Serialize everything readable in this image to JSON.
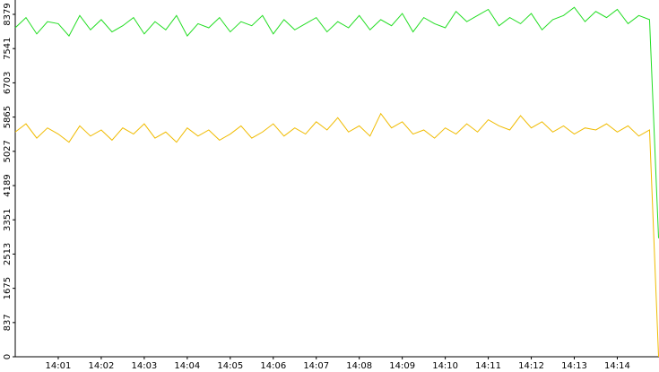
{
  "chart_data": {
    "type": "line",
    "x": [
      0,
      0.25,
      0.5,
      0.75,
      1,
      1.25,
      1.5,
      1.75,
      2,
      2.25,
      2.5,
      2.75,
      3,
      3.25,
      3.5,
      3.75,
      4,
      4.25,
      4.5,
      4.75,
      5,
      5.25,
      5.5,
      5.75,
      6,
      6.25,
      6.5,
      6.75,
      7,
      7.25,
      7.5,
      7.75,
      8,
      8.25,
      8.5,
      8.75,
      9,
      9.25,
      9.5,
      9.75,
      10,
      10.25,
      10.5,
      10.75,
      11,
      11.25,
      11.5,
      11.75,
      12,
      12.25,
      12.5,
      12.75,
      13,
      13.25,
      13.5,
      13.75,
      14,
      14.25,
      14.5,
      14.75,
      14.96
    ],
    "series": [
      {
        "color": "#22dd22",
        "values": [
          8050,
          8300,
          7900,
          8200,
          8150,
          7850,
          8350,
          8000,
          8250,
          7950,
          8100,
          8300,
          7900,
          8200,
          8000,
          8350,
          7850,
          8150,
          8050,
          8300,
          7950,
          8200,
          8100,
          8350,
          7900,
          8250,
          8000,
          8150,
          8300,
          7950,
          8200,
          8050,
          8350,
          8000,
          8250,
          8100,
          8400,
          7950,
          8300,
          8150,
          8050,
          8450,
          8200,
          8350,
          8500,
          8100,
          8300,
          8150,
          8400,
          8000,
          8250,
          8350,
          8550,
          8200,
          8450,
          8300,
          8500,
          8150,
          8350,
          8250,
          2900
        ]
      },
      {
        "color": "#f0bb00",
        "values": [
          5500,
          5700,
          5350,
          5600,
          5450,
          5250,
          5650,
          5400,
          5550,
          5300,
          5600,
          5450,
          5700,
          5350,
          5500,
          5250,
          5600,
          5400,
          5550,
          5300,
          5450,
          5650,
          5350,
          5500,
          5700,
          5400,
          5600,
          5450,
          5750,
          5550,
          5850,
          5500,
          5650,
          5400,
          5950,
          5600,
          5750,
          5450,
          5550,
          5350,
          5600,
          5450,
          5700,
          5500,
          5800,
          5650,
          5550,
          5900,
          5600,
          5750,
          5500,
          5650,
          5450,
          5600,
          5550,
          5700,
          5500,
          5650,
          5400,
          5550,
          0
        ]
      }
    ],
    "xlim": [
      0,
      14.97
    ],
    "xticks": [
      {
        "value": 1,
        "label": "14:01"
      },
      {
        "value": 2,
        "label": "14:02"
      },
      {
        "value": 3,
        "label": "14:03"
      },
      {
        "value": 4,
        "label": "14:04"
      },
      {
        "value": 5,
        "label": "14:05"
      },
      {
        "value": 6,
        "label": "14:06"
      },
      {
        "value": 7,
        "label": "14:07"
      },
      {
        "value": 8,
        "label": "14:08"
      },
      {
        "value": 9,
        "label": "14:09"
      },
      {
        "value": 10,
        "label": "14:10"
      },
      {
        "value": 11,
        "label": "14:11"
      },
      {
        "value": 12,
        "label": "14:12"
      },
      {
        "value": 13,
        "label": "14:13"
      },
      {
        "value": 14,
        "label": "14:14"
      }
    ],
    "ylim": [
      0,
      8730
    ],
    "yticks": [
      0,
      837,
      1675,
      2513,
      3351,
      4189,
      5027,
      5865,
      6703,
      7541,
      8379
    ]
  }
}
